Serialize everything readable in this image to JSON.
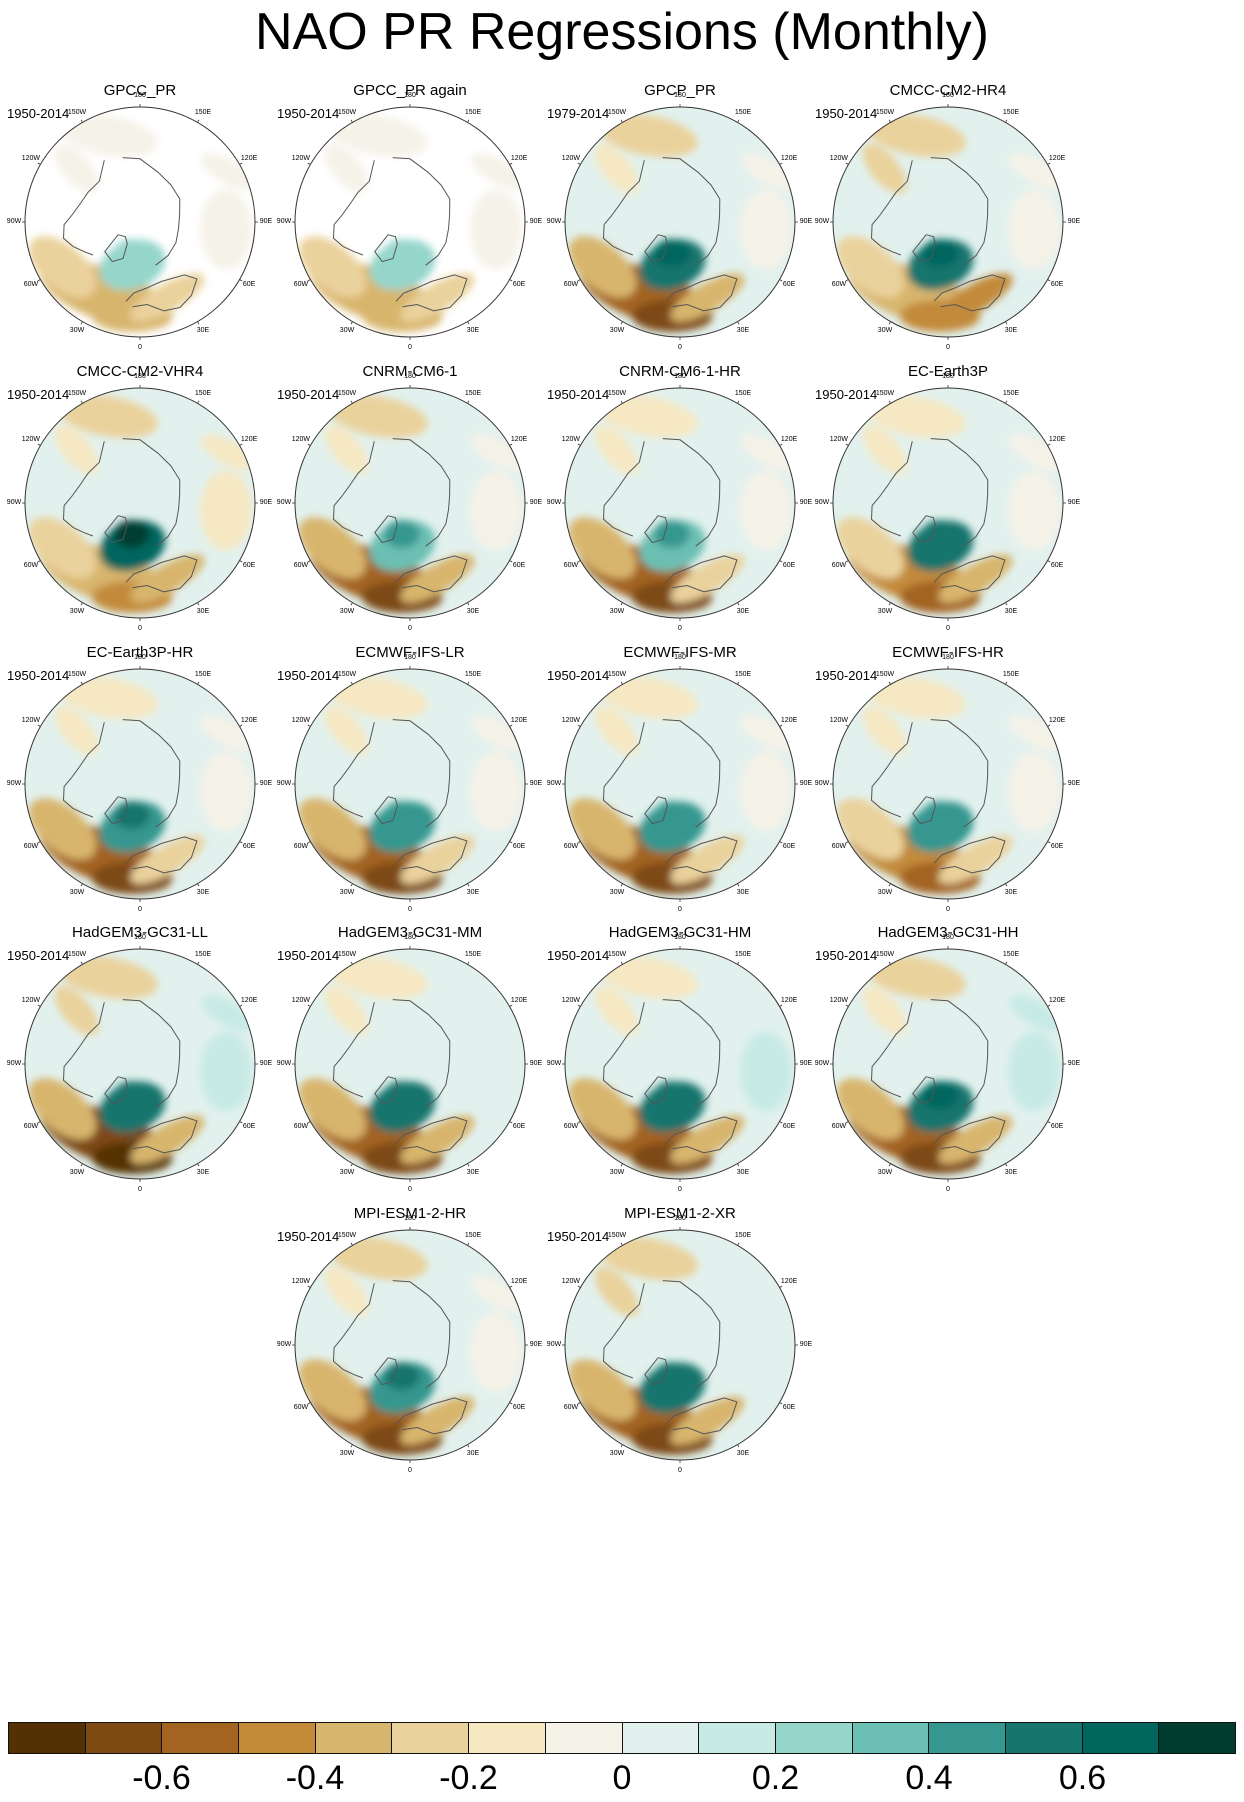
{
  "title": "NAO PR Regressions (Monthly)",
  "chart_data": {
    "type": "heatmap",
    "description_kind": "polar stereographic maps, Northern Hemisphere",
    "panels": [
      {
        "name": "GPCC_PR",
        "period": "1950-2014",
        "land_only": true,
        "pattern": {
          "icelandic": 0.2,
          "atlantic": -0.35,
          "pacific": -0.05,
          "asia": -0.05,
          "europe": -0.25
        }
      },
      {
        "name": "GPCC_PR again",
        "period": "1950-2014",
        "land_only": true,
        "pattern": {
          "icelandic": 0.2,
          "atlantic": -0.35,
          "pacific": -0.05,
          "asia": -0.05,
          "europe": -0.25
        }
      },
      {
        "name": "GPCP_PR",
        "period": "1979-2014",
        "land_only": false,
        "pattern": {
          "icelandic": 0.55,
          "atlantic": -0.55,
          "pacific": -0.25,
          "asia": -0.05,
          "europe": -0.35
        }
      },
      {
        "name": "CMCC-CM2-HR4",
        "period": "1950-2014",
        "land_only": false,
        "pattern": {
          "icelandic": 0.6,
          "atlantic": -0.4,
          "pacific": -0.3,
          "asia": -0.05,
          "europe": -0.45
        }
      },
      {
        "name": "CMCC-CM2-VHR4",
        "period": "1950-2014",
        "land_only": false,
        "pattern": {
          "icelandic": 0.65,
          "atlantic": -0.4,
          "pacific": -0.25,
          "asia": -0.15,
          "europe": -0.35
        }
      },
      {
        "name": "CNRM-CM6-1",
        "period": "1950-2014",
        "land_only": false,
        "pattern": {
          "icelandic": 0.35,
          "atlantic": -0.55,
          "pacific": -0.25,
          "asia": -0.05,
          "europe": -0.35
        }
      },
      {
        "name": "CNRM-CM6-1-HR",
        "period": "1950-2014",
        "land_only": false,
        "pattern": {
          "icelandic": 0.35,
          "atlantic": -0.55,
          "pacific": -0.2,
          "asia": -0.05,
          "europe": -0.3
        }
      },
      {
        "name": "EC-Earth3P",
        "period": "1950-2014",
        "land_only": false,
        "pattern": {
          "icelandic": 0.5,
          "atlantic": -0.5,
          "pacific": -0.15,
          "asia": -0.05,
          "europe": -0.35
        }
      },
      {
        "name": "EC-Earth3P-HR",
        "period": "1950-2014",
        "land_only": false,
        "pattern": {
          "icelandic": 0.45,
          "atlantic": -0.55,
          "pacific": -0.15,
          "asia": -0.05,
          "europe": -0.3
        }
      },
      {
        "name": "ECMWF-IFS-LR",
        "period": "1950-2014",
        "land_only": false,
        "pattern": {
          "icelandic": 0.4,
          "atlantic": -0.55,
          "pacific": -0.15,
          "asia": -0.05,
          "europe": -0.3
        }
      },
      {
        "name": "ECMWF-IFS-MR",
        "period": "1950-2014",
        "land_only": false,
        "pattern": {
          "icelandic": 0.4,
          "atlantic": -0.55,
          "pacific": -0.2,
          "asia": -0.05,
          "europe": -0.3
        }
      },
      {
        "name": "ECMWF-IFS-HR",
        "period": "1950-2014",
        "land_only": false,
        "pattern": {
          "icelandic": 0.4,
          "atlantic": -0.5,
          "pacific": -0.15,
          "asia": -0.05,
          "europe": -0.3
        }
      },
      {
        "name": "HadGEM3-GC31-LL",
        "period": "1950-2014",
        "land_only": false,
        "pattern": {
          "icelandic": 0.5,
          "atlantic": -0.65,
          "pacific": -0.3,
          "asia": 0.15,
          "europe": -0.4
        }
      },
      {
        "name": "HadGEM3-GC31-MM",
        "period": "1950-2014",
        "land_only": false,
        "pattern": {
          "icelandic": 0.5,
          "atlantic": -0.6,
          "pacific": -0.2,
          "asia": 0.05,
          "europe": -0.35
        }
      },
      {
        "name": "HadGEM3-GC31-HM",
        "period": "1950-2014",
        "land_only": false,
        "pattern": {
          "icelandic": 0.5,
          "atlantic": -0.6,
          "pacific": -0.15,
          "asia": 0.1,
          "europe": -0.35
        }
      },
      {
        "name": "HadGEM3-GC31-HH",
        "period": "1950-2014",
        "land_only": false,
        "pattern": {
          "icelandic": 0.6,
          "atlantic": -0.55,
          "pacific": -0.25,
          "asia": 0.15,
          "europe": -0.35
        }
      },
      {
        "name": "MPI-ESM1-2-HR",
        "period": "1950-2014",
        "land_only": false,
        "pattern": {
          "icelandic": 0.45,
          "atlantic": -0.6,
          "pacific": -0.25,
          "asia": -0.05,
          "europe": -0.35
        }
      },
      {
        "name": "MPI-ESM1-2-XR",
        "period": "1950-2014",
        "land_only": false,
        "pattern": {
          "icelandic": 0.5,
          "atlantic": -0.6,
          "pacific": -0.3,
          "asia": 0.05,
          "europe": -0.35
        }
      }
    ],
    "longitude_labels": [
      "180",
      "150W",
      "150E",
      "120W",
      "120E",
      "90W",
      "90E",
      "60W",
      "60E",
      "30W",
      "30E",
      "0"
    ],
    "colorbar": {
      "range": [
        -0.8,
        0.8
      ],
      "levels": 16,
      "colors": [
        "#543005",
        "#7d4a12",
        "#a36422",
        "#c38a3a",
        "#d8b56d",
        "#ead29c",
        "#f6e8c3",
        "#f5f2e8",
        "#e2f1ee",
        "#c7eae5",
        "#95d6cb",
        "#6cbfb3",
        "#35978f",
        "#16756d",
        "#01665e",
        "#003c30"
      ],
      "tick_labels": [
        "-0.6",
        "-0.4",
        "-0.2",
        "0",
        "0.2",
        "0.4",
        "0.6"
      ],
      "tick_values": [
        -0.6,
        -0.4,
        -0.2,
        0,
        0.2,
        0.4,
        0.6
      ]
    }
  }
}
